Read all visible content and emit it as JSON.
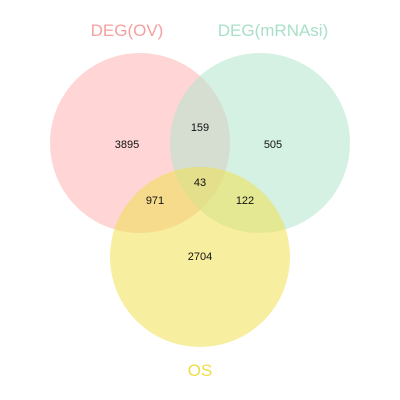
{
  "sets": [
    {
      "key": "a",
      "label": "DEG(OV)",
      "fill": "#ffb3b3",
      "label_color": "#f5a0a0"
    },
    {
      "key": "b",
      "label": "DEG(mRNAsi)",
      "fill": "#b3e5cc",
      "label_color": "#a8e0c8"
    },
    {
      "key": "c",
      "label": "OS",
      "fill": "#f0e050",
      "label_color": "#eedd44"
    }
  ],
  "regions": {
    "a_only": "3895",
    "b_only": "505",
    "c_only": "2704",
    "ab": "159",
    "ac": "971",
    "bc": "122",
    "abc": "43"
  },
  "fill_opacity": 0.55
}
